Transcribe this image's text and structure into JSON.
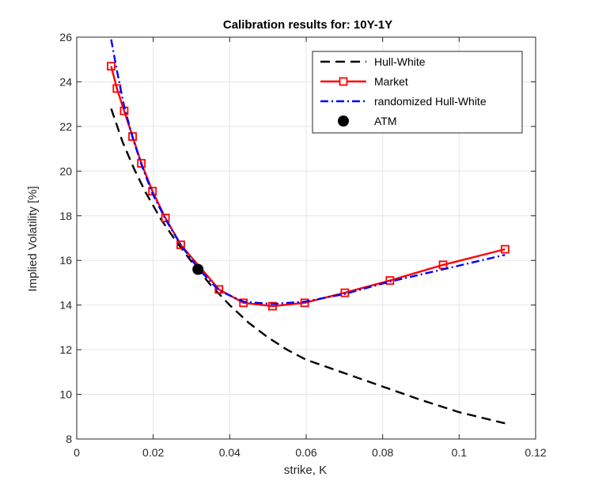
{
  "chart_data": {
    "type": "line",
    "title": "Calibration results for: 10Y-1Y",
    "xlabel": "strike, K",
    "ylabel": "Implied Volatility [%]",
    "xlim": [
      0,
      0.12
    ],
    "ylim": [
      8,
      26
    ],
    "xticks": [
      0,
      0.02,
      0.04,
      0.06,
      0.08,
      0.1,
      0.12
    ],
    "xtick_labels": [
      "0",
      "0.02",
      "0.04",
      "0.06",
      "0.08",
      "0.1",
      "0.12"
    ],
    "yticks": [
      8,
      10,
      12,
      14,
      16,
      18,
      20,
      22,
      24,
      26
    ],
    "ytick_labels": [
      "8",
      "10",
      "12",
      "14",
      "16",
      "18",
      "20",
      "22",
      "24",
      "26"
    ],
    "grid": true,
    "legend_position": "top-right",
    "series": [
      {
        "name": "Market",
        "color": "#ff0000",
        "style": "solid-square-markers",
        "x": [
          0.009,
          0.0105,
          0.0124,
          0.0146,
          0.0169,
          0.0198,
          0.0232,
          0.0272,
          0.0372,
          0.0436,
          0.0512,
          0.0596,
          0.0701,
          0.0819,
          0.0958,
          0.112
        ],
        "y": [
          24.7,
          23.7,
          22.7,
          21.55,
          20.35,
          19.1,
          17.9,
          16.7,
          14.7,
          14.1,
          13.95,
          14.1,
          14.55,
          15.1,
          15.8,
          16.5
        ]
      },
      {
        "name": "Hull-White",
        "color": "#000000",
        "style": "dashed",
        "x": [
          0.009,
          0.012,
          0.015,
          0.018,
          0.022,
          0.026,
          0.03,
          0.035,
          0.04,
          0.045,
          0.05,
          0.055,
          0.06,
          0.07,
          0.08,
          0.09,
          0.1,
          0.112
        ],
        "y": [
          22.8,
          21.3,
          20.1,
          19.05,
          17.85,
          16.85,
          15.95,
          14.9,
          14.0,
          13.2,
          12.55,
          12.0,
          11.55,
          10.95,
          10.35,
          9.75,
          9.2,
          8.7
        ]
      },
      {
        "name": "randomized Hull-White",
        "color": "#0000ff",
        "style": "dash-dot",
        "x": [
          0.009,
          0.0105,
          0.0124,
          0.0146,
          0.0169,
          0.0198,
          0.0232,
          0.0272,
          0.0317,
          0.0372,
          0.0436,
          0.0512,
          0.0596,
          0.0701,
          0.0819,
          0.0958,
          0.112
        ],
        "y": [
          25.9,
          24.5,
          22.9,
          21.5,
          20.3,
          19.0,
          17.85,
          16.7,
          15.65,
          14.65,
          14.15,
          14.05,
          14.15,
          14.5,
          15.05,
          15.6,
          16.25
        ]
      },
      {
        "name": "ATM",
        "color": "#000000",
        "style": "marker-filled-circle",
        "x": [
          0.0317
        ],
        "y": [
          15.6
        ]
      }
    ]
  }
}
